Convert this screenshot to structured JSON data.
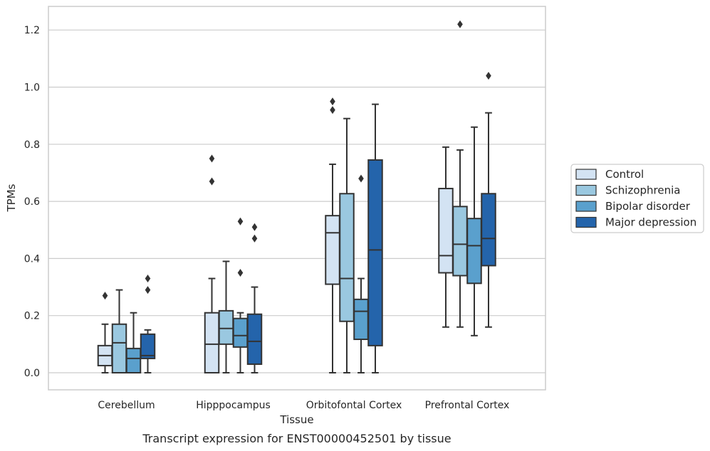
{
  "chart_data": {
    "type": "box",
    "xlabel": "Tissue",
    "ylabel": "TPMs",
    "caption": "Transcript expression for ENST00000452501 by tissue",
    "ylim": [
      -0.06,
      1.28
    ],
    "yticks": [
      "0.0",
      "0.2",
      "0.4",
      "0.6",
      "0.8",
      "1.0",
      "1.2"
    ],
    "grid": "horizontal",
    "legend_position": "right",
    "categories": [
      "Cerebellum",
      "Hipppocampus",
      "Orbitofontal Cortex",
      "Prefrontal Cortex"
    ],
    "series": [
      {
        "name": "Control",
        "color": "#d3e3f3",
        "boxes": [
          {
            "whislo": 0.0,
            "q1": 0.025,
            "med": 0.06,
            "q3": 0.095,
            "whishi": 0.17,
            "fliers": [
              0.27
            ]
          },
          {
            "whislo": 0.0,
            "q1": 0.0,
            "med": 0.1,
            "q3": 0.21,
            "whishi": 0.33,
            "fliers": [
              0.67,
              0.75
            ]
          },
          {
            "whislo": 0.0,
            "q1": 0.31,
            "med": 0.49,
            "q3": 0.55,
            "whishi": 0.73,
            "fliers": [
              0.92,
              0.95
            ]
          },
          {
            "whislo": 0.16,
            "q1": 0.35,
            "med": 0.41,
            "q3": 0.645,
            "whishi": 0.79,
            "fliers": []
          }
        ]
      },
      {
        "name": "Schizophrenia",
        "color": "#9ac8e0",
        "boxes": [
          {
            "whislo": 0.0,
            "q1": 0.0,
            "med": 0.105,
            "q3": 0.17,
            "whishi": 0.29,
            "fliers": []
          },
          {
            "whislo": 0.0,
            "q1": 0.1,
            "med": 0.155,
            "q3": 0.217,
            "whishi": 0.39,
            "fliers": []
          },
          {
            "whislo": 0.0,
            "q1": 0.18,
            "med": 0.33,
            "q3": 0.627,
            "whishi": 0.89,
            "fliers": []
          },
          {
            "whislo": 0.16,
            "q1": 0.34,
            "med": 0.45,
            "q3": 0.582,
            "whishi": 0.78,
            "fliers": [
              1.22
            ]
          }
        ]
      },
      {
        "name": "Bipolar disorder",
        "color": "#5aa0cd",
        "boxes": [
          {
            "whislo": 0.0,
            "q1": 0.0,
            "med": 0.05,
            "q3": 0.085,
            "whishi": 0.21,
            "fliers": []
          },
          {
            "whislo": 0.0,
            "q1": 0.09,
            "med": 0.13,
            "q3": 0.19,
            "whishi": 0.21,
            "fliers": [
              0.35,
              0.53
            ]
          },
          {
            "whislo": 0.0,
            "q1": 0.117,
            "med": 0.215,
            "q3": 0.257,
            "whishi": 0.33,
            "fliers": [
              0.68
            ]
          },
          {
            "whislo": 0.13,
            "q1": 0.313,
            "med": 0.445,
            "q3": 0.54,
            "whishi": 0.86,
            "fliers": []
          }
        ]
      },
      {
        "name": "Major depression",
        "color": "#2464ab",
        "boxes": [
          {
            "whislo": 0.0,
            "q1": 0.05,
            "med": 0.06,
            "q3": 0.135,
            "whishi": 0.15,
            "fliers": [
              0.29,
              0.33
            ]
          },
          {
            "whislo": 0.0,
            "q1": 0.03,
            "med": 0.11,
            "q3": 0.205,
            "whishi": 0.3,
            "fliers": [
              0.47,
              0.51
            ]
          },
          {
            "whislo": 0.0,
            "q1": 0.095,
            "med": 0.43,
            "q3": 0.745,
            "whishi": 0.94,
            "fliers": []
          },
          {
            "whislo": 0.16,
            "q1": 0.375,
            "med": 0.47,
            "q3": 0.627,
            "whishi": 0.91,
            "fliers": [
              1.04
            ]
          }
        ]
      }
    ]
  }
}
